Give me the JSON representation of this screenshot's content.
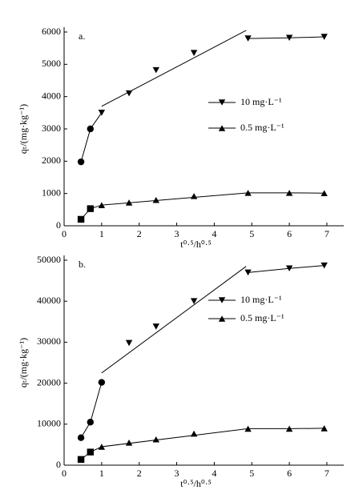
{
  "chart_data": [
    {
      "type": "scatter",
      "panel_label": "a.",
      "ylabel": "qₜ/(mg·kg⁻¹)",
      "xlabel": "t⁰·⁵/h⁰·⁵",
      "xlim": [
        0,
        7.45
      ],
      "xticks": [
        0,
        1,
        2,
        3,
        4,
        5,
        6,
        7
      ],
      "ylim": [
        0,
        6000
      ],
      "yticks": [
        0,
        1000,
        2000,
        3000,
        4000,
        5000,
        6000
      ],
      "x": [
        0.45,
        0.7,
        1.0,
        1.73,
        2.45,
        3.46,
        4.9,
        6.0,
        6.93
      ],
      "series": [
        {
          "name": "10 mg·L⁻¹",
          "color": "#000000",
          "legend_marker": "triangle-down",
          "markers": [
            "circle",
            "circle",
            "triangle-down",
            "triangle-down",
            "triangle-down",
            "triangle-down",
            "triangle-down",
            "triangle-down",
            "triangle-down"
          ],
          "values": [
            1980,
            3000,
            3500,
            4100,
            4820,
            5350,
            5800,
            5820,
            5850
          ]
        },
        {
          "name": "0.5 mg·L⁻¹",
          "color": "#000000",
          "legend_marker": "triangle-up",
          "markers": [
            "square",
            "square",
            "triangle-up",
            "triangle-up",
            "triangle-up",
            "triangle-up",
            "triangle-up",
            "triangle-up",
            "triangle-up"
          ],
          "values": [
            200,
            530,
            640,
            720,
            800,
            920,
            1020,
            1020,
            1010
          ]
        }
      ],
      "lines": [
        {
          "x": [
            0.45,
            0.7,
            1.0
          ],
          "y": [
            1980,
            3000,
            3500
          ]
        },
        {
          "x": [
            1.0,
            4.85
          ],
          "y": [
            3700,
            6050
          ]
        },
        {
          "x": [
            4.9,
            6.0,
            6.93
          ],
          "y": [
            5800,
            5820,
            5850
          ]
        },
        {
          "x": [
            0.45,
            0.7,
            1.0
          ],
          "y": [
            200,
            530,
            640
          ]
        },
        {
          "x": [
            1.0,
            4.9,
            6.0,
            6.93
          ],
          "y": [
            640,
            1020,
            1020,
            1010
          ]
        }
      ]
    },
    {
      "type": "scatter",
      "panel_label": "b.",
      "ylabel": "qₜ/(mg·kg⁻¹)",
      "xlabel": "t⁰·⁵/h⁰·⁵",
      "xlim": [
        0,
        7.45
      ],
      "xticks": [
        0,
        1,
        2,
        3,
        4,
        5,
        6,
        7
      ],
      "ylim": [
        0,
        50000
      ],
      "yticks": [
        0,
        10000,
        20000,
        30000,
        40000,
        50000
      ],
      "x": [
        0.45,
        0.7,
        1.0,
        1.73,
        2.45,
        3.46,
        4.9,
        6.0,
        6.93
      ],
      "series": [
        {
          "name": "10 mg·L⁻¹",
          "color": "#000000",
          "legend_marker": "triangle-down",
          "markers": [
            "circle",
            "circle",
            "circle",
            "triangle-down",
            "triangle-down",
            "triangle-down",
            "triangle-down",
            "triangle-down",
            "triangle-down"
          ],
          "values": [
            6700,
            10500,
            20200,
            29800,
            33800,
            40000,
            47000,
            48000,
            48700
          ]
        },
        {
          "name": "0.5 mg·L⁻¹",
          "color": "#000000",
          "legend_marker": "triangle-up",
          "markers": [
            "square",
            "square",
            "triangle-up",
            "triangle-up",
            "triangle-up",
            "triangle-up",
            "triangle-up",
            "triangle-up",
            "triangle-up"
          ],
          "values": [
            1400,
            3200,
            4500,
            5500,
            6300,
            7700,
            8900,
            8900,
            9000
          ]
        }
      ],
      "lines": [
        {
          "x": [
            0.45,
            0.7,
            1.0
          ],
          "y": [
            6700,
            10500,
            20200
          ]
        },
        {
          "x": [
            1.0,
            4.85
          ],
          "y": [
            22500,
            48500
          ]
        },
        {
          "x": [
            4.9,
            6.0,
            6.93
          ],
          "y": [
            47000,
            48000,
            48700
          ]
        },
        {
          "x": [
            0.45,
            0.7,
            1.0
          ],
          "y": [
            1400,
            3200,
            4500
          ]
        },
        {
          "x": [
            1.0,
            4.9,
            6.0,
            6.93
          ],
          "y": [
            4500,
            8900,
            8900,
            9000
          ]
        }
      ]
    }
  ]
}
